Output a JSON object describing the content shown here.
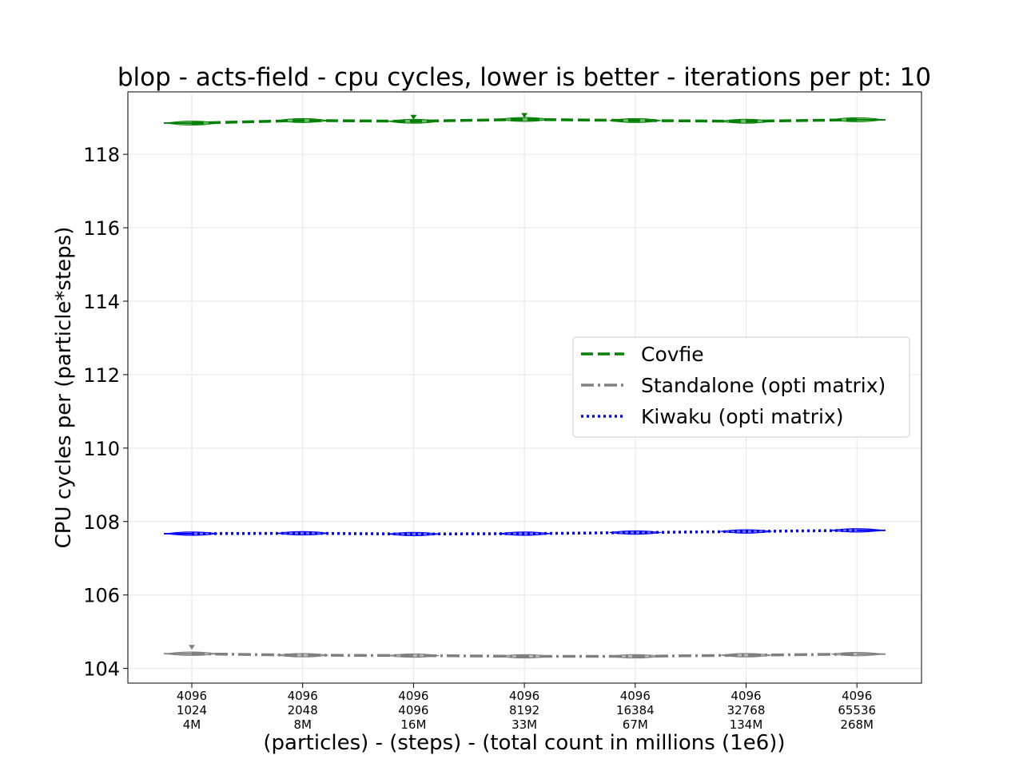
{
  "chart_data": {
    "type": "line",
    "title": "blop - acts-field - cpu cycles, lower is better - iterations per pt: 10",
    "xlabel": "(particles) - (steps) - (total count in millions (1e6))",
    "ylabel": "CPU cycles per (particle*steps)",
    "categories": [
      [
        "4096",
        "1024",
        "4M"
      ],
      [
        "4096",
        "2048",
        "8M"
      ],
      [
        "4096",
        "4096",
        "16M"
      ],
      [
        "4096",
        "8192",
        "33M"
      ],
      [
        "4096",
        "16384",
        "67M"
      ],
      [
        "4096",
        "32768",
        "134M"
      ],
      [
        "4096",
        "65536",
        "268M"
      ]
    ],
    "yticks": [
      104,
      106,
      108,
      110,
      112,
      114,
      116,
      118
    ],
    "ylim": [
      103.6,
      119.7
    ],
    "grid": true,
    "legend_position": "center-right",
    "series": [
      {
        "name": "Covfie",
        "color": "#008000",
        "style": "dashed",
        "values": [
          118.85,
          118.92,
          118.9,
          118.95,
          118.92,
          118.9,
          118.94
        ]
      },
      {
        "name": "Standalone (opti matrix)",
        "color": "#808080",
        "style": "dashdot",
        "values": [
          104.4,
          104.36,
          104.35,
          104.33,
          104.33,
          104.36,
          104.39
        ]
      },
      {
        "name": "Kiwaku (opti matrix)",
        "color": "#0000ff",
        "style": "dotted",
        "values": [
          107.67,
          107.68,
          107.66,
          107.67,
          107.7,
          107.73,
          107.76
        ]
      }
    ]
  }
}
